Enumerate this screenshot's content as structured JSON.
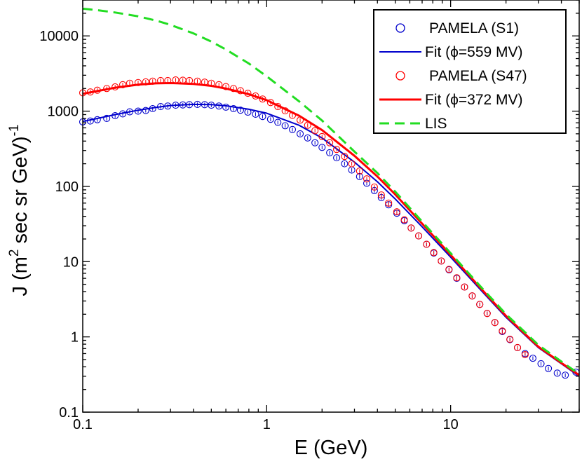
{
  "chart_data": {
    "type": "line",
    "title": "",
    "xlabel": "E (GeV)",
    "ylabel": {
      "prefix": "J (m",
      "sup1": "2",
      "middle": " sec sr GeV)",
      "sup2": "-1"
    },
    "x_scale": "log",
    "y_scale": "log",
    "xlim": [
      0.1,
      50
    ],
    "ylim": [
      0.1,
      30000
    ],
    "x_ticks": [
      {
        "value": 0.1,
        "label": "0.1"
      },
      {
        "value": 1,
        "label": "1"
      },
      {
        "value": 10,
        "label": "10"
      }
    ],
    "y_ticks": [
      {
        "value": 0.1,
        "label": "0.1"
      },
      {
        "value": 1,
        "label": "1"
      },
      {
        "value": 10,
        "label": "10"
      },
      {
        "value": 100,
        "label": "100"
      },
      {
        "value": 1000,
        "label": "1000"
      },
      {
        "value": 10000,
        "label": "10000"
      }
    ],
    "grid": false,
    "legend_position": "top-right",
    "series": [
      {
        "name": "PAMELA (S1)",
        "kind": "points",
        "color": "#0000cc",
        "x": [
          0.1,
          0.11,
          0.12,
          0.135,
          0.15,
          0.165,
          0.18,
          0.2,
          0.22,
          0.24,
          0.265,
          0.29,
          0.32,
          0.35,
          0.38,
          0.42,
          0.46,
          0.5,
          0.55,
          0.6,
          0.66,
          0.72,
          0.79,
          0.87,
          0.95,
          1.05,
          1.15,
          1.26,
          1.38,
          1.52,
          1.67,
          1.83,
          2.0,
          2.2,
          2.4,
          2.65,
          2.9,
          3.2,
          3.5,
          3.85,
          4.2,
          4.6,
          5.1,
          5.6,
          6.1,
          6.7,
          7.4,
          8.1,
          8.9,
          9.8,
          10.8,
          11.9,
          13.1,
          14.4,
          15.8,
          17.4,
          19.1,
          21.0,
          23.1,
          25.4,
          28,
          31,
          34,
          38,
          42,
          48
        ],
        "y": [
          720,
          740,
          770,
          800,
          870,
          920,
          980,
          1000,
          1020,
          1080,
          1150,
          1170,
          1200,
          1210,
          1220,
          1230,
          1220,
          1200,
          1170,
          1130,
          1080,
          1030,
          970,
          910,
          850,
          780,
          710,
          640,
          570,
          500,
          440,
          380,
          330,
          280,
          240,
          200,
          165,
          135,
          110,
          88,
          71,
          57,
          44,
          35,
          28,
          22,
          17,
          13,
          10.2,
          7.8,
          6.0,
          4.6,
          3.5,
          2.7,
          2.05,
          1.55,
          1.18,
          0.92,
          0.72,
          0.6,
          0.52,
          0.44,
          0.38,
          0.33,
          0.31,
          0.34
        ]
      },
      {
        "name": "Fit (ϕ=559 MV)",
        "kind": "line",
        "color": "#0000cc",
        "x": [
          0.1,
          0.12,
          0.15,
          0.2,
          0.25,
          0.3,
          0.4,
          0.5,
          0.6,
          0.8,
          1,
          1.5,
          2,
          3,
          4,
          5,
          7,
          10,
          15,
          20,
          30,
          40,
          50
        ],
        "y": [
          730,
          800,
          900,
          1030,
          1120,
          1190,
          1230,
          1220,
          1180,
          1060,
          940,
          650,
          440,
          210,
          115,
          68,
          29,
          11.5,
          3.9,
          1.82,
          0.72,
          0.44,
          0.3
        ]
      },
      {
        "name": "PAMELA (S47)",
        "kind": "points",
        "color": "#ff0000",
        "x": [
          0.1,
          0.11,
          0.12,
          0.135,
          0.15,
          0.165,
          0.18,
          0.2,
          0.22,
          0.24,
          0.265,
          0.29,
          0.32,
          0.35,
          0.38,
          0.42,
          0.46,
          0.5,
          0.55,
          0.6,
          0.66,
          0.72,
          0.79,
          0.87,
          0.95,
          1.05,
          1.15,
          1.26,
          1.38,
          1.52,
          1.67,
          1.83,
          2.0,
          2.2,
          2.4,
          2.65,
          2.9,
          3.2,
          3.5,
          3.85,
          4.2,
          4.6,
          5.1,
          5.6,
          6.1,
          6.7,
          7.4,
          8.1,
          8.9,
          9.8,
          10.8,
          11.9,
          13.1,
          14.4,
          15.8,
          17.4,
          19.1,
          21.0,
          23.1,
          25.4
        ],
        "y": [
          1750,
          1800,
          1900,
          2000,
          2100,
          2250,
          2350,
          2400,
          2450,
          2500,
          2550,
          2550,
          2600,
          2580,
          2550,
          2500,
          2430,
          2350,
          2250,
          2120,
          2000,
          1870,
          1730,
          1590,
          1450,
          1300,
          1150,
          1010,
          880,
          760,
          650,
          550,
          460,
          380,
          310,
          250,
          200,
          160,
          126,
          98,
          77,
          60,
          46,
          36,
          28,
          22,
          17,
          13.2,
          10.2,
          7.9,
          6.1,
          4.6,
          3.5,
          2.7,
          2.05,
          1.55,
          1.2,
          0.93,
          0.72,
          0.58
        ]
      },
      {
        "name": "Fit (ϕ=372 MV)",
        "kind": "line",
        "color": "#ff0000",
        "x": [
          0.1,
          0.12,
          0.15,
          0.2,
          0.25,
          0.3,
          0.4,
          0.5,
          0.6,
          0.8,
          1,
          1.5,
          2,
          3,
          4,
          5,
          7,
          10,
          15,
          20,
          30,
          40,
          50
        ],
        "y": [
          1700,
          1850,
          2050,
          2250,
          2340,
          2360,
          2300,
          2170,
          2000,
          1680,
          1400,
          870,
          560,
          255,
          135,
          78,
          32,
          12.3,
          4.1,
          1.9,
          0.74,
          0.45,
          0.31
        ]
      },
      {
        "name": "LIS",
        "kind": "dashed-line",
        "color": "#22dd22",
        "x": [
          0.1,
          0.12,
          0.15,
          0.2,
          0.25,
          0.3,
          0.4,
          0.5,
          0.6,
          0.8,
          1,
          1.5,
          2,
          3,
          4,
          5,
          7,
          10,
          15,
          20,
          30,
          40,
          50
        ],
        "y": [
          23000,
          22000,
          20500,
          18200,
          16000,
          14000,
          10800,
          8400,
          6600,
          4300,
          2900,
          1350,
          750,
          290,
          150,
          85,
          34,
          13,
          4.3,
          2.0,
          0.78,
          0.47,
          0.32
        ]
      }
    ]
  }
}
